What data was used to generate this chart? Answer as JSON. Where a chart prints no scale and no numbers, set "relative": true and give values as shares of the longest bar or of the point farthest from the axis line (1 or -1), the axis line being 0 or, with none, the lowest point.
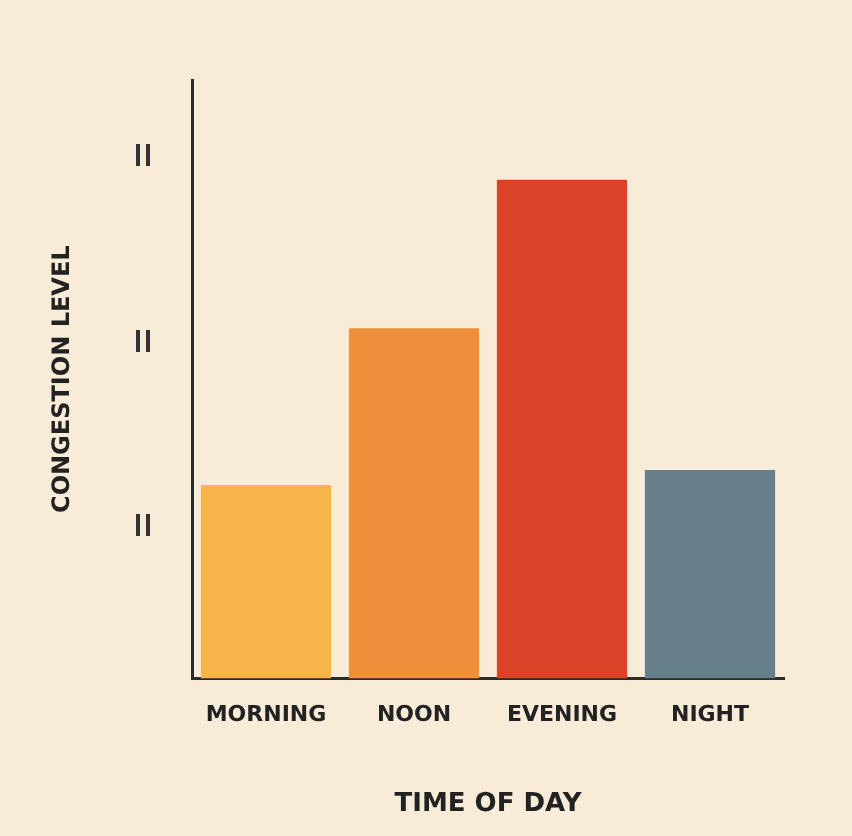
{
  "chart_data": {
    "type": "bar",
    "xlabel": "TIME OF DAY",
    "ylabel": "CONGESTION LEVEL",
    "relative": true,
    "categories": [
      "MORNING",
      "NOON",
      "EVENING",
      "NIGHT"
    ],
    "values": [
      0.388,
      0.702,
      1,
      0.418
    ],
    "colors": [
      "#f6b44a",
      "#ee8f3a",
      "#da4327",
      "#65808a"
    ]
  }
}
